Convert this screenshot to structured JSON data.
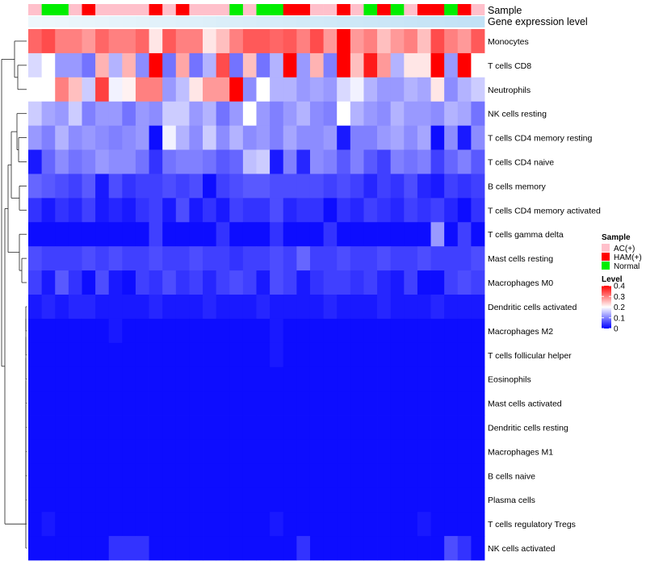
{
  "chart_data": {
    "type": "heatmap",
    "annotation_labels": {
      "sample": "Sample",
      "gene": "Gene expression level"
    },
    "rows": [
      "Monocytes",
      "T cells CD8",
      "Neutrophils",
      "NK cells resting",
      "T cells CD4 memory resting",
      "T cells CD4 naive",
      "B cells memory",
      "T cells CD4 memory activated",
      "T cells gamma delta",
      "Mast cells resting",
      "Macrophages M0",
      "Dendritic cells activated",
      "Macrophages M2",
      "T cells follicular helper",
      "Eosinophils",
      "Mast cells activated",
      "Dendritic cells resting",
      "Macrophages M1",
      "B cells naive",
      "Plasma cells",
      "T cells regulatory  Tregs",
      "NK cells activated"
    ],
    "sample_groups": [
      "AC(+)",
      "Normal",
      "Normal",
      "AC(+)",
      "HAM(+)",
      "AC(+)",
      "AC(+)",
      "AC(+)",
      "AC(+)",
      "HAM(+)",
      "AC(+)",
      "HAM(+)",
      "AC(+)",
      "AC(+)",
      "AC(+)",
      "Normal",
      "AC(+)",
      "Normal",
      "Normal",
      "HAM(+)",
      "HAM(+)",
      "AC(+)",
      "AC(+)",
      "HAM(+)",
      "AC(+)",
      "Normal",
      "HAM(+)",
      "Normal",
      "AC(+)",
      "HAM(+)",
      "HAM(+)",
      "Normal",
      "HAM(+)",
      "AC(+)"
    ],
    "gene_expression": [
      "#eef7fc",
      "#edf7fc",
      "#ecf6fc",
      "#eaf5fb",
      "#e9f5fb",
      "#e8f4fb",
      "#e6f3fb",
      "#e5f3fb",
      "#e4f2fa",
      "#e2f1fa",
      "#e1f1fa",
      "#dff0fa",
      "#def0fa",
      "#ddeff9",
      "#dbeef9",
      "#daeef9",
      "#d9edf9",
      "#d7ecf9",
      "#d6ecf9",
      "#d5ebf8",
      "#d3eaf8",
      "#d2eaf8",
      "#d1e9f8",
      "#cfe8f8",
      "#cee8f7",
      "#cce7f7",
      "#cbe6f7",
      "#cae6f7",
      "#c8e5f7",
      "#c7e4f6",
      "#c6e4f6",
      "#c4e3f6",
      "#c3e2f6",
      "#c2e2f6"
    ],
    "values": [
      [
        0.32,
        0.34,
        0.3,
        0.3,
        0.28,
        0.32,
        0.3,
        0.3,
        0.32,
        0.22,
        0.33,
        0.3,
        0.3,
        0.22,
        0.25,
        0.3,
        0.33,
        0.33,
        0.32,
        0.33,
        0.3,
        0.34,
        0.28,
        0.4,
        0.28,
        0.3,
        0.25,
        0.28,
        0.3,
        0.25,
        0.34,
        0.3,
        0.28,
        0.33
      ],
      [
        0.17,
        0.2,
        0.12,
        0.12,
        0.09,
        0.26,
        0.14,
        0.26,
        0.11,
        0.4,
        0.09,
        0.27,
        0.09,
        0.14,
        0.34,
        0.09,
        0.25,
        0.09,
        0.14,
        0.4,
        0.12,
        0.26,
        0.1,
        0.4,
        0.25,
        0.38,
        0.28,
        0.14,
        0.22,
        0.22,
        0.4,
        0.12,
        0.4,
        0.2
      ],
      [
        0.2,
        0.2,
        0.3,
        0.25,
        0.16,
        0.35,
        0.19,
        0.21,
        0.3,
        0.3,
        0.12,
        0.15,
        0.22,
        0.28,
        0.28,
        0.4,
        0.11,
        0.2,
        0.14,
        0.14,
        0.12,
        0.13,
        0.12,
        0.17,
        0.19,
        0.14,
        0.12,
        0.12,
        0.14,
        0.13,
        0.22,
        0.11,
        0.14,
        0.16
      ],
      [
        0.16,
        0.13,
        0.12,
        0.16,
        0.1,
        0.12,
        0.12,
        0.09,
        0.12,
        0.11,
        0.16,
        0.16,
        0.12,
        0.14,
        0.09,
        0.12,
        0.2,
        0.12,
        0.1,
        0.12,
        0.14,
        0.11,
        0.1,
        0.2,
        0.14,
        0.12,
        0.11,
        0.14,
        0.12,
        0.12,
        0.11,
        0.14,
        0.13,
        0.09
      ],
      [
        0.12,
        0.1,
        0.14,
        0.11,
        0.12,
        0.11,
        0.1,
        0.11,
        0.12,
        0.01,
        0.19,
        0.14,
        0.11,
        0.16,
        0.11,
        0.14,
        0.11,
        0.12,
        0.1,
        0.13,
        0.11,
        0.11,
        0.12,
        0.02,
        0.1,
        0.1,
        0.12,
        0.13,
        0.11,
        0.13,
        0.01,
        0.11,
        0.02,
        0.11
      ],
      [
        0.02,
        0.08,
        0.11,
        0.09,
        0.1,
        0.12,
        0.11,
        0.11,
        0.09,
        0.04,
        0.09,
        0.1,
        0.1,
        0.09,
        0.07,
        0.08,
        0.15,
        0.16,
        0.02,
        0.1,
        0.03,
        0.11,
        0.1,
        0.07,
        0.1,
        0.07,
        0.05,
        0.1,
        0.09,
        0.1,
        0.05,
        0.08,
        0.1,
        0.07
      ],
      [
        0.08,
        0.07,
        0.06,
        0.05,
        0.07,
        0.02,
        0.06,
        0.04,
        0.05,
        0.05,
        0.06,
        0.05,
        0.06,
        0.01,
        0.05,
        0.06,
        0.07,
        0.07,
        0.06,
        0.06,
        0.06,
        0.06,
        0.05,
        0.06,
        0.05,
        0.03,
        0.05,
        0.04,
        0.06,
        0.03,
        0.02,
        0.05,
        0.04,
        0.05
      ],
      [
        0.04,
        0.02,
        0.04,
        0.03,
        0.05,
        0.02,
        0.03,
        0.02,
        0.04,
        0.05,
        0.02,
        0.06,
        0.02,
        0.04,
        0.02,
        0.05,
        0.04,
        0.04,
        0.06,
        0.03,
        0.04,
        0.04,
        0.01,
        0.04,
        0.03,
        0.05,
        0.04,
        0.03,
        0.05,
        0.04,
        0.05,
        0.03,
        0.01,
        0.04
      ],
      [
        0.01,
        0.01,
        0.01,
        0.01,
        0.01,
        0.01,
        0.01,
        0.01,
        0.01,
        0.05,
        0.01,
        0.01,
        0.01,
        0.01,
        0.04,
        0.01,
        0.01,
        0.01,
        0.04,
        0.01,
        0.01,
        0.01,
        0.04,
        0.01,
        0.01,
        0.01,
        0.01,
        0.01,
        0.01,
        0.01,
        0.12,
        0.01,
        0.05,
        0.01
      ],
      [
        0.06,
        0.05,
        0.05,
        0.05,
        0.06,
        0.05,
        0.06,
        0.05,
        0.05,
        0.06,
        0.05,
        0.05,
        0.06,
        0.05,
        0.05,
        0.04,
        0.05,
        0.05,
        0.06,
        0.05,
        0.08,
        0.05,
        0.05,
        0.06,
        0.05,
        0.05,
        0.06,
        0.05,
        0.05,
        0.06,
        0.05,
        0.05,
        0.05,
        0.06
      ],
      [
        0.05,
        0.02,
        0.07,
        0.04,
        0.01,
        0.06,
        0.02,
        0.01,
        0.05,
        0.04,
        0.06,
        0.04,
        0.05,
        0.03,
        0.05,
        0.06,
        0.05,
        0.02,
        0.06,
        0.05,
        0.02,
        0.04,
        0.05,
        0.05,
        0.04,
        0.05,
        0.03,
        0.02,
        0.05,
        0.01,
        0.01,
        0.05,
        0.06,
        0.05
      ],
      [
        0.02,
        0.03,
        0.02,
        0.03,
        0.03,
        0.02,
        0.02,
        0.02,
        0.02,
        0.03,
        0.02,
        0.02,
        0.02,
        0.03,
        0.02,
        0.02,
        0.02,
        0.03,
        0.02,
        0.02,
        0.02,
        0.02,
        0.03,
        0.02,
        0.02,
        0.02,
        0.03,
        0.02,
        0.02,
        0.02,
        0.03,
        0.02,
        0.02,
        0.02
      ],
      [
        0.01,
        0.01,
        0.01,
        0.01,
        0.01,
        0.01,
        0.02,
        0.01,
        0.01,
        0.01,
        0.01,
        0.01,
        0.01,
        0.01,
        0.01,
        0.01,
        0.01,
        0.01,
        0.02,
        0.01,
        0.01,
        0.01,
        0.01,
        0.01,
        0.01,
        0.01,
        0.01,
        0.01,
        0.01,
        0.01,
        0.01,
        0.01,
        0.01,
        0.01
      ],
      [
        0.01,
        0.01,
        0.01,
        0.01,
        0.01,
        0.01,
        0.01,
        0.01,
        0.01,
        0.01,
        0.01,
        0.01,
        0.01,
        0.01,
        0.01,
        0.01,
        0.01,
        0.01,
        0.02,
        0.01,
        0.01,
        0.01,
        0.01,
        0.01,
        0.01,
        0.01,
        0.01,
        0.01,
        0.01,
        0.01,
        0.01,
        0.01,
        0.01,
        0.01
      ],
      [
        0.01,
        0.01,
        0.01,
        0.01,
        0.01,
        0.01,
        0.01,
        0.01,
        0.01,
        0.01,
        0.01,
        0.01,
        0.01,
        0.01,
        0.01,
        0.01,
        0.01,
        0.01,
        0.01,
        0.01,
        0.01,
        0.01,
        0.01,
        0.01,
        0.01,
        0.01,
        0.01,
        0.01,
        0.01,
        0.01,
        0.01,
        0.01,
        0.01,
        0.01
      ],
      [
        0.01,
        0.01,
        0.01,
        0.01,
        0.01,
        0.01,
        0.01,
        0.01,
        0.01,
        0.01,
        0.01,
        0.01,
        0.01,
        0.01,
        0.01,
        0.01,
        0.01,
        0.01,
        0.01,
        0.01,
        0.01,
        0.01,
        0.01,
        0.01,
        0.01,
        0.01,
        0.01,
        0.01,
        0.01,
        0.01,
        0.01,
        0.01,
        0.01,
        0.01
      ],
      [
        0.01,
        0.01,
        0.01,
        0.01,
        0.01,
        0.01,
        0.01,
        0.01,
        0.01,
        0.01,
        0.01,
        0.01,
        0.01,
        0.01,
        0.01,
        0.01,
        0.01,
        0.01,
        0.01,
        0.01,
        0.01,
        0.01,
        0.01,
        0.01,
        0.01,
        0.01,
        0.01,
        0.01,
        0.01,
        0.01,
        0.01,
        0.01,
        0.01,
        0.01
      ],
      [
        0.01,
        0.01,
        0.01,
        0.01,
        0.01,
        0.01,
        0.01,
        0.01,
        0.01,
        0.01,
        0.01,
        0.01,
        0.01,
        0.01,
        0.01,
        0.01,
        0.01,
        0.01,
        0.01,
        0.01,
        0.01,
        0.01,
        0.01,
        0.01,
        0.01,
        0.01,
        0.01,
        0.01,
        0.01,
        0.01,
        0.01,
        0.01,
        0.01,
        0.01
      ],
      [
        0.01,
        0.01,
        0.01,
        0.01,
        0.01,
        0.01,
        0.01,
        0.01,
        0.01,
        0.01,
        0.01,
        0.01,
        0.01,
        0.01,
        0.01,
        0.01,
        0.01,
        0.01,
        0.01,
        0.01,
        0.01,
        0.01,
        0.01,
        0.01,
        0.01,
        0.01,
        0.01,
        0.01,
        0.01,
        0.01,
        0.01,
        0.01,
        0.01,
        0.01
      ],
      [
        0.01,
        0.01,
        0.01,
        0.01,
        0.01,
        0.01,
        0.01,
        0.01,
        0.01,
        0.01,
        0.01,
        0.01,
        0.01,
        0.01,
        0.01,
        0.01,
        0.01,
        0.01,
        0.01,
        0.01,
        0.01,
        0.01,
        0.01,
        0.01,
        0.01,
        0.01,
        0.01,
        0.01,
        0.01,
        0.01,
        0.01,
        0.01,
        0.01,
        0.01
      ],
      [
        0.01,
        0.02,
        0.01,
        0.01,
        0.01,
        0.01,
        0.01,
        0.01,
        0.01,
        0.01,
        0.01,
        0.01,
        0.01,
        0.01,
        0.01,
        0.01,
        0.01,
        0.01,
        0.02,
        0.01,
        0.01,
        0.01,
        0.01,
        0.01,
        0.01,
        0.01,
        0.01,
        0.01,
        0.01,
        0.02,
        0.01,
        0.01,
        0.01,
        0.01
      ],
      [
        0.01,
        0.01,
        0.01,
        0.01,
        0.01,
        0.01,
        0.04,
        0.04,
        0.04,
        0.01,
        0.01,
        0.01,
        0.01,
        0.01,
        0.01,
        0.01,
        0.01,
        0.01,
        0.01,
        0.01,
        0.04,
        0.01,
        0.01,
        0.01,
        0.01,
        0.01,
        0.01,
        0.01,
        0.01,
        0.01,
        0.01,
        0.06,
        0.04,
        0.01
      ]
    ],
    "legend": {
      "sample": {
        "title": "Sample",
        "entries": [
          {
            "label": "AC(+)",
            "color": "#ffc0cb"
          },
          {
            "label": "HAM(+)",
            "color": "#ff0000"
          },
          {
            "label": "Normal",
            "color": "#00ee00"
          }
        ]
      },
      "level": {
        "title": "Level",
        "ticks": [
          "0.4",
          "0.3",
          "0.2",
          "0.1",
          "0"
        ],
        "tick_values": [
          0.4,
          0.3,
          0.2,
          0.1,
          0
        ],
        "range": [
          0,
          0.4
        ],
        "colors": {
          "low": "#0000ff",
          "mid": "#ffffff",
          "high": "#ff0000"
        }
      }
    }
  }
}
